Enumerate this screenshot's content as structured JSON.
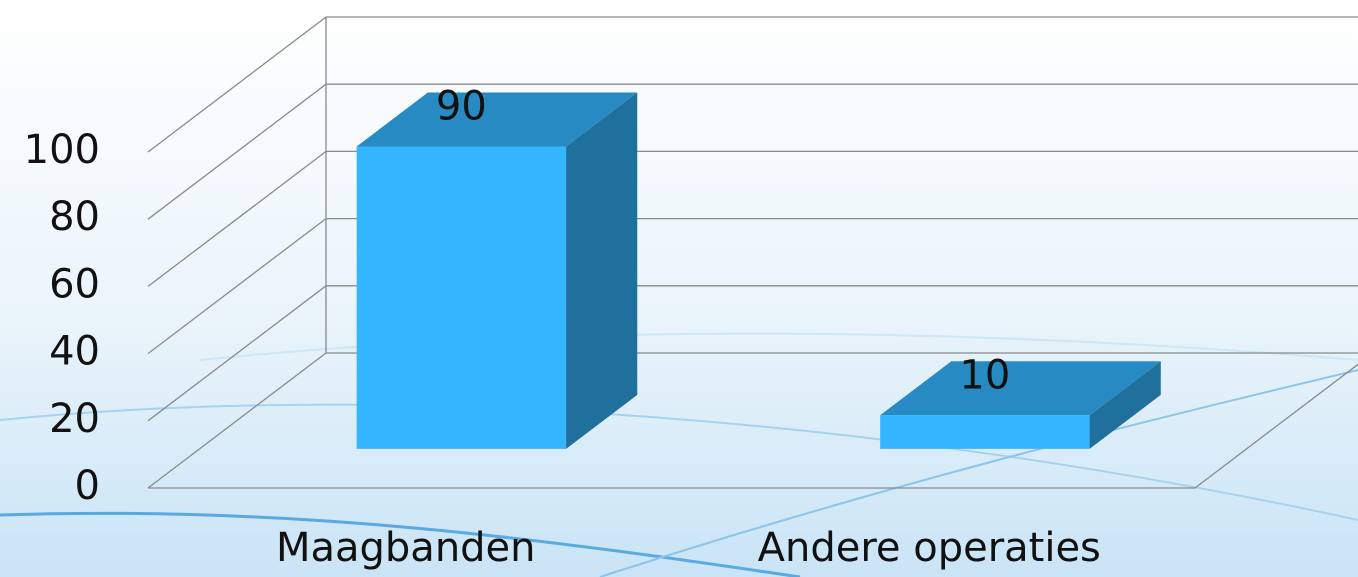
{
  "chart_data": {
    "type": "bar3d",
    "categories": [
      "Maagbanden",
      "Andere operaties"
    ],
    "values": [
      90,
      10
    ],
    "color": "#33b5ff",
    "ylim": [
      0,
      100
    ],
    "yticks": [
      0,
      20,
      40,
      60,
      80,
      100
    ],
    "grid": true
  }
}
